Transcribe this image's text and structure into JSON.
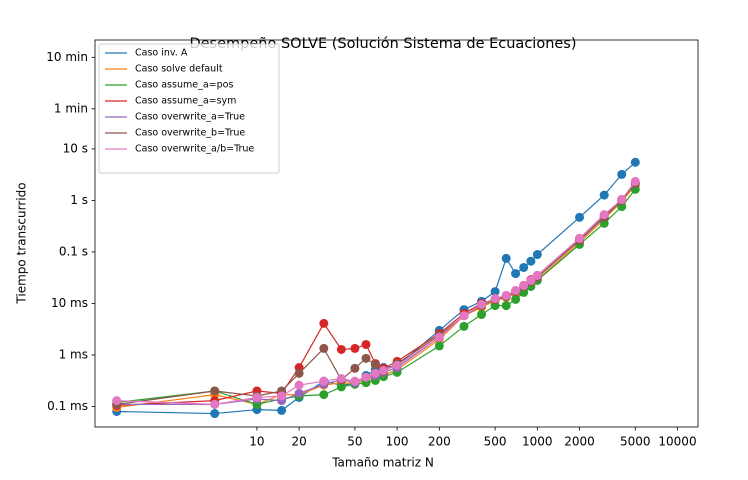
{
  "chart_data": {
    "type": "line",
    "title": "Desempeño SOLVE (Solución Sistema de Ecuaciones)",
    "xlabel": "Tamaño matriz N",
    "ylabel": "Tiempo transcurrido",
    "xscale": "log",
    "yscale": "log",
    "legend": "upper left",
    "markers": true,
    "xlim": [
      0.7,
      14000
    ],
    "ylim": [
      4e-05,
      1300
    ],
    "xticks": [
      10,
      20,
      50,
      100,
      200,
      500,
      1000,
      2000,
      5000,
      10000
    ],
    "yticks": [
      {
        "value": 0.0001,
        "label": "0.1 ms"
      },
      {
        "value": 0.001,
        "label": "1 ms"
      },
      {
        "value": 0.01,
        "label": "10 ms"
      },
      {
        "value": 0.1,
        "label": "0.1 s"
      },
      {
        "value": 1,
        "label": "1 s"
      },
      {
        "value": 10,
        "label": "10 s"
      },
      {
        "value": 60,
        "label": "1 min"
      },
      {
        "value": 600,
        "label": "10 min"
      }
    ],
    "x": [
      1,
      5,
      10,
      15,
      20,
      30,
      40,
      50,
      60,
      70,
      80,
      100,
      200,
      300,
      400,
      500,
      600,
      700,
      800,
      900,
      1000,
      2000,
      3000,
      4000,
      5000
    ],
    "series": [
      {
        "name": "Caso inv. A",
        "color": "#1f77b4",
        "values": [
          8e-05,
          7.3e-05,
          8.7e-05,
          8.4e-05,
          0.00015,
          0.00031,
          0.00026,
          0.00028,
          0.0004,
          0.00052,
          0.00057,
          0.00062,
          0.003,
          0.0076,
          0.011,
          0.017,
          0.075,
          0.038,
          0.05,
          0.066,
          0.089,
          0.47,
          1.27,
          3.2,
          5.5
        ]
      },
      {
        "name": "Caso solve default",
        "color": "#ff7f0e",
        "values": [
          9.6e-05,
          0.00017,
          0.00011,
          0.00017,
          0.00017,
          0.00026,
          0.00029,
          0.00028,
          0.00033,
          0.00037,
          0.0004,
          0.00052,
          0.002,
          0.0058,
          0.0084,
          0.0114,
          0.0131,
          0.0156,
          0.0196,
          0.0245,
          0.029,
          0.153,
          0.43,
          0.96,
          1.95
        ]
      },
      {
        "name": "Caso assume_a=pos",
        "color": "#2ca02c",
        "values": [
          0.00012,
          0.0002,
          0.00011,
          0.00014,
          0.00016,
          0.00017,
          0.00024,
          0.00027,
          0.00029,
          0.00032,
          0.00038,
          0.00046,
          0.0015,
          0.0036,
          0.0061,
          0.0091,
          0.0091,
          0.012,
          0.0164,
          0.0214,
          0.028,
          0.14,
          0.36,
          0.76,
          1.64
        ]
      },
      {
        "name": "Caso assume_a=sym",
        "color": "#d62728",
        "values": [
          0.000105,
          0.00013,
          0.0002,
          0.00018,
          0.00057,
          0.0041,
          0.00128,
          0.00134,
          0.0016,
          0.00068,
          0.00055,
          0.00075,
          0.0026,
          0.0064,
          0.01,
          0.012,
          0.0137,
          0.0171,
          0.0224,
          0.029,
          0.035,
          0.183,
          0.51,
          1.04,
          2.24
        ]
      },
      {
        "name": "Caso overwrite_a=True",
        "color": "#9467bd",
        "values": [
          0.00011,
          0.00011,
          0.00014,
          0.00013,
          0.00018,
          0.00027,
          0.00033,
          0.00029,
          0.00037,
          0.0004,
          0.00046,
          0.00057,
          0.0022,
          0.0058,
          0.0091,
          0.012,
          0.0143,
          0.0171,
          0.0214,
          0.0267,
          0.032,
          0.175,
          0.49,
          1.04,
          2.14
        ]
      },
      {
        "name": "Caso overwrite_b=True",
        "color": "#8c564b",
        "values": [
          0.00011,
          0.0002,
          0.00016,
          0.0002,
          0.00044,
          0.00134,
          0.00033,
          0.00055,
          0.00086,
          0.00065,
          0.00048,
          0.00068,
          0.0024,
          0.0058,
          0.0091,
          0.012,
          0.0137,
          0.0171,
          0.0214,
          0.0267,
          0.032,
          0.167,
          0.47,
          1.0,
          2.14
        ]
      },
      {
        "name": "Caso overwrite_a/b=True",
        "color": "#e377c2",
        "values": [
          0.00013,
          0.00011,
          0.00015,
          0.00016,
          0.00026,
          0.00031,
          0.00035,
          0.00031,
          0.00037,
          0.00044,
          0.0005,
          0.00063,
          0.0022,
          0.0058,
          0.0096,
          0.0125,
          0.0143,
          0.0179,
          0.0224,
          0.028,
          0.035,
          0.183,
          0.53,
          1.04,
          2.34
        ]
      }
    ]
  }
}
